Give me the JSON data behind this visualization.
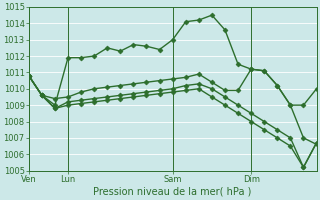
{
  "xlabel": "Pression niveau de la mer( hPa )",
  "bg_color": "#cce8e8",
  "grid_color": "#ffffff",
  "line_color": "#2d6e2d",
  "ylim": [
    1005,
    1015
  ],
  "yticks": [
    1005,
    1006,
    1007,
    1008,
    1009,
    1010,
    1011,
    1012,
    1013,
    1014,
    1015
  ],
  "x_tick_labels": [
    "Ven",
    "Lun",
    "Sam",
    "Dim"
  ],
  "x_tick_positions": [
    0,
    3,
    11,
    17
  ],
  "vlines": [
    0,
    3,
    11,
    17
  ],
  "total_points": 23,
  "series": [
    [
      1010.8,
      1009.6,
      1009.0,
      1011.9,
      1011.9,
      1012.0,
      1012.5,
      1012.3,
      1012.7,
      1012.6,
      1012.4,
      1013.0,
      1014.1,
      1014.2,
      1014.5,
      1013.6,
      1011.5,
      1011.2,
      1011.1,
      1010.2,
      1009.0,
      1007.0,
      1006.6
    ],
    [
      1010.8,
      1009.6,
      1009.4,
      1009.5,
      1009.8,
      1010.0,
      1010.1,
      1010.2,
      1010.3,
      1010.4,
      1010.5,
      1010.6,
      1010.7,
      1010.9,
      1010.4,
      1009.9,
      1009.9,
      1011.2,
      1011.1,
      1010.2,
      1009.0,
      1009.0,
      1010.0
    ],
    [
      1010.8,
      1009.6,
      1008.8,
      1009.2,
      1009.3,
      1009.4,
      1009.5,
      1009.6,
      1009.7,
      1009.8,
      1009.9,
      1010.0,
      1010.2,
      1010.3,
      1010.0,
      1009.5,
      1009.0,
      1008.5,
      1008.0,
      1007.5,
      1007.0,
      1005.2,
      1006.7
    ],
    [
      1010.8,
      1009.6,
      1008.8,
      1009.0,
      1009.1,
      1009.2,
      1009.3,
      1009.4,
      1009.5,
      1009.6,
      1009.7,
      1009.8,
      1009.9,
      1010.0,
      1009.5,
      1009.0,
      1008.5,
      1008.0,
      1007.5,
      1007.0,
      1006.5,
      1005.2,
      1006.7
    ]
  ],
  "marker": "D",
  "marker_size": 2.5,
  "line_width": 1.0
}
